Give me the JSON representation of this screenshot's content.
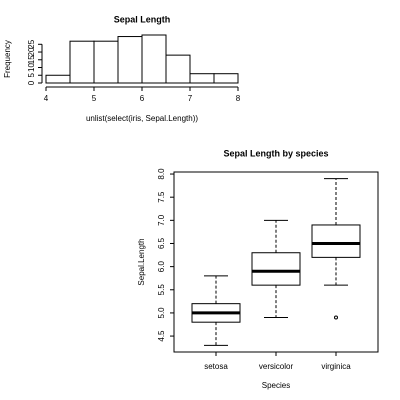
{
  "chart_data": [
    {
      "type": "histogram",
      "title": "Sepal Length",
      "x_label": "unlist(select(iris, Sepal.Length))",
      "y_label": "Frequency",
      "bins": [
        4,
        4.5,
        5,
        5.5,
        6,
        6.5,
        7,
        7.5,
        8
      ],
      "values": [
        5,
        27,
        27,
        30,
        31,
        18,
        6,
        6
      ],
      "xlim": [
        4,
        8
      ],
      "xticks": [
        4,
        5,
        6,
        7,
        8
      ],
      "ylim": [
        0,
        31
      ],
      "yticks": [
        0,
        5,
        10,
        15,
        20,
        25
      ],
      "color": "#ffffff"
    },
    {
      "type": "boxplot",
      "title": "Sepal Length by species",
      "x_label": "Species",
      "y_label": "Sepal.Length",
      "categories": [
        "setosa",
        "versicolor",
        "virginica"
      ],
      "boxes": [
        {
          "min": 4.3,
          "q1": 4.8,
          "median": 5.0,
          "q3": 5.2,
          "max": 5.8,
          "outliers": []
        },
        {
          "min": 4.9,
          "q1": 5.6,
          "median": 5.9,
          "q3": 6.3,
          "max": 7.0,
          "outliers": []
        },
        {
          "min": 5.6,
          "q1": 6.2,
          "median": 6.5,
          "q3": 6.9,
          "max": 7.9,
          "outliers": [
            4.9
          ]
        }
      ],
      "ylim": [
        4.156,
        8.044
      ],
      "yticks": [
        4.5,
        {
          "value": 5,
          "label": "5.0"
        },
        5.5,
        {
          "value": 6,
          "label": "6.0"
        },
        6.5,
        {
          "value": 7,
          "label": "7.0"
        },
        7.5,
        {
          "value": 8,
          "label": "8.0"
        }
      ],
      "color": "#ffffff"
    }
  ]
}
